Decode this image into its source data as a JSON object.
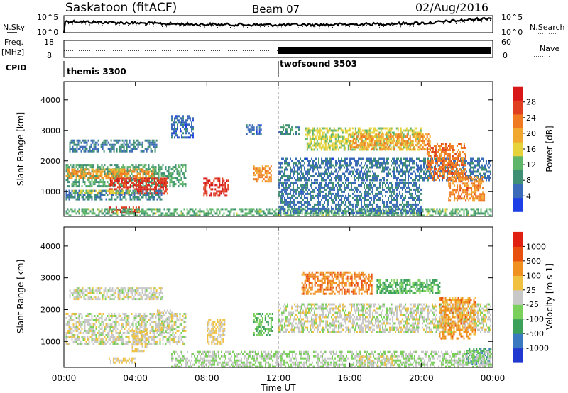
{
  "header": {
    "title": "Saskatoon (fitACF)",
    "beam": "Beam 07",
    "date": "02/Aug/2016"
  },
  "top_panels": {
    "nsky_label": "N.Sky",
    "nsky_ticks": [
      "10^5",
      "10^0"
    ],
    "nsearch_label": "N.Search",
    "nsearch_ticks": [
      "10^5",
      "10^0"
    ],
    "freq_label": "Freq.",
    "freq_unit": "[MHz]",
    "freq_ticks": [
      "18",
      "8"
    ],
    "nave_label": "Nave",
    "nave_ticks": [
      "60",
      "0"
    ],
    "cpid_label": "CPID",
    "cpid_segments": [
      {
        "name": "themis 3300",
        "start_hour": 0,
        "end_hour": 12
      },
      {
        "name": "twofsound 3503",
        "start_hour": 12,
        "end_hour": 24
      }
    ]
  },
  "colors": {
    "power": [
      "#1f3fe6",
      "#3a6ab8",
      "#3f8f74",
      "#5fb56a",
      "#e6d23a",
      "#f0a830",
      "#f07a22",
      "#e04020",
      "#d81818"
    ],
    "velocity": [
      "#2038d0",
      "#3a78c0",
      "#3aa05a",
      "#7ad05a",
      "#c8c8c8",
      "#f0c040",
      "#f09020",
      "#e85010",
      "#e02010"
    ]
  },
  "chart_data": [
    {
      "type": "heatmap",
      "title": "Power",
      "xlabel": "",
      "ylabel": "Slant Range [km]",
      "xlim": [
        0,
        24
      ],
      "ylim": [
        180,
        4600
      ],
      "xticks": [
        "00:00",
        "04:00",
        "08:00",
        "12:00",
        "16:00",
        "20:00",
        "00:00"
      ],
      "yticks": [
        1000,
        2000,
        3000,
        4000
      ],
      "colorbar": {
        "label": "Power [dB]",
        "ticks": [
          "28",
          "24",
          "20",
          "16",
          "12",
          "8",
          "4"
        ],
        "range": [
          0,
          30
        ]
      },
      "regions": [
        {
          "x": [
            0.1,
            6.8
          ],
          "y": [
            1200,
            1900
          ],
          "value": 10
        },
        {
          "x": [
            0.1,
            5.0
          ],
          "y": [
            1450,
            1750
          ],
          "value": 19
        },
        {
          "x": [
            2.5,
            5.8
          ],
          "y": [
            900,
            1450
          ],
          "value": 26
        },
        {
          "x": [
            0.1,
            5.5
          ],
          "y": [
            750,
            1050
          ],
          "value": 7
        },
        {
          "x": [
            0.5,
            4.0
          ],
          "y": [
            950,
            1050
          ],
          "value": 14
        },
        {
          "x": [
            2.5,
            4.2
          ],
          "y": [
            350,
            500
          ],
          "value": 27
        },
        {
          "x": [
            0.3,
            5.2
          ],
          "y": [
            2300,
            2700
          ],
          "value": 7
        },
        {
          "x": [
            7.8,
            9.2
          ],
          "y": [
            850,
            1450
          ],
          "value": 27
        },
        {
          "x": [
            10.6,
            11.6
          ],
          "y": [
            1350,
            1850
          ],
          "value": 20
        },
        {
          "x": [
            12.0,
            23.9
          ],
          "y": [
            1400,
            2100
          ],
          "value": 6
        },
        {
          "x": [
            13.5,
            20.0
          ],
          "y": [
            2400,
            3100
          ],
          "value": 14
        },
        {
          "x": [
            16.0,
            20.5
          ],
          "y": [
            2350,
            2900
          ],
          "value": 19
        },
        {
          "x": [
            20.3,
            22.5
          ],
          "y": [
            1400,
            2600
          ],
          "value": 22
        },
        {
          "x": [
            21.5,
            23.5
          ],
          "y": [
            700,
            1500
          ],
          "value": 21
        },
        {
          "x": [
            0.1,
            23.9
          ],
          "y": [
            200,
            450
          ],
          "value": 11
        },
        {
          "x": [
            12.0,
            20.0
          ],
          "y": [
            300,
            1300
          ],
          "value": 6
        },
        {
          "x": [
            6.0,
            7.2
          ],
          "y": [
            2800,
            3500
          ],
          "value": 5
        },
        {
          "x": [
            10.2,
            11.0
          ],
          "y": [
            2900,
            3200
          ],
          "value": 5
        },
        {
          "x": [
            12.0,
            13.2
          ],
          "y": [
            2900,
            3200
          ],
          "value": 8
        }
      ]
    },
    {
      "type": "heatmap",
      "title": "Velocity",
      "xlabel": "Time UT",
      "ylabel": "Slant Range [km]",
      "xlim": [
        0,
        24
      ],
      "ylim": [
        180,
        4600
      ],
      "xticks": [
        "00:00",
        "04:00",
        "08:00",
        "12:00",
        "16:00",
        "20:00",
        "00:00"
      ],
      "yticks": [
        1000,
        2000,
        3000,
        4000
      ],
      "colorbar": {
        "label": "Velocity [m s-1]",
        "ticks": [
          "1000",
          "500",
          "100",
          "25",
          "-25",
          "-100",
          "-500",
          "-1000"
        ],
        "range": [
          -1200,
          1200
        ]
      },
      "regions": [
        {
          "x": [
            0.1,
            6.8
          ],
          "y": [
            900,
            1900
          ],
          "value": 0
        },
        {
          "x": [
            0.3,
            5.5
          ],
          "y": [
            2300,
            2700
          ],
          "value": 0
        },
        {
          "x": [
            3.8,
            4.6
          ],
          "y": [
            700,
            1400
          ],
          "value": 150
        },
        {
          "x": [
            5.2,
            6.0
          ],
          "y": [
            1300,
            2000
          ],
          "value": 0
        },
        {
          "x": [
            8.0,
            9.0
          ],
          "y": [
            900,
            1700
          ],
          "value": 150
        },
        {
          "x": [
            10.6,
            11.7
          ],
          "y": [
            1200,
            1900
          ],
          "value": -400
        },
        {
          "x": [
            12.0,
            23.9
          ],
          "y": [
            1300,
            2200
          ],
          "value": 0
        },
        {
          "x": [
            13.3,
            17.2
          ],
          "y": [
            2500,
            3200
          ],
          "value": 600
        },
        {
          "x": [
            17.5,
            21.0
          ],
          "y": [
            2500,
            2950
          ],
          "value": -450
        },
        {
          "x": [
            21.0,
            23.0
          ],
          "y": [
            1100,
            2400
          ],
          "value": 500
        },
        {
          "x": [
            22.5,
            23.9
          ],
          "y": [
            300,
            800
          ],
          "value": -600
        },
        {
          "x": [
            6.0,
            23.9
          ],
          "y": [
            200,
            700
          ],
          "value": -120
        },
        {
          "x": [
            16.5,
            18.5
          ],
          "y": [
            250,
            550
          ],
          "value": 150
        },
        {
          "x": [
            2.5,
            4.0
          ],
          "y": [
            350,
            500
          ],
          "value": 120
        }
      ]
    }
  ]
}
